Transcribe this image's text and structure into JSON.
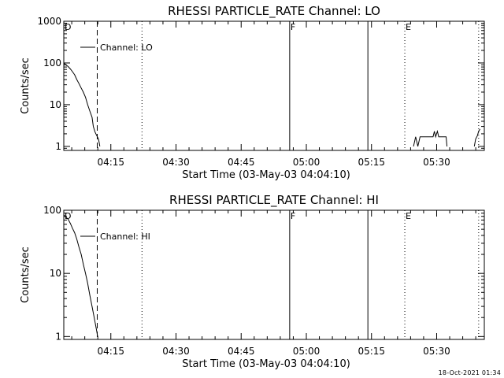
{
  "footer": {
    "timestamp": "18-Oct-2021 01:34"
  },
  "chart_data": [
    {
      "type": "line",
      "title": "RHESSI PARTICLE_RATE Channel: LO",
      "xlabel": "Start Time (03-May-03 04:04:10)",
      "ylabel": "Counts/sec",
      "x_unit": "minutes since 04:04:10",
      "xlim": [
        0,
        96.8
      ],
      "xtick_values": [
        10.83,
        25.83,
        40.83,
        55.83,
        70.83,
        85.83
      ],
      "xtick_labels": [
        "04:15",
        "04:30",
        "04:45",
        "05:00",
        "05:15",
        "05:30"
      ],
      "yscale": "log",
      "ylim": [
        0.8,
        1000
      ],
      "ytick_values": [
        1,
        10,
        100,
        1000
      ],
      "ytick_labels": [
        "1",
        "10",
        "100",
        "1000"
      ],
      "legend": {
        "label": "Channel: LO",
        "placement": "top-left"
      },
      "markers": [
        {
          "x": 0.0,
          "label": "D",
          "style": "solid"
        },
        {
          "x": 7.7,
          "label": "",
          "style": "dashed"
        },
        {
          "x": 18.0,
          "label": "",
          "style": "dotted"
        },
        {
          "x": 52.0,
          "label": "F",
          "style": "solid"
        },
        {
          "x": 70.0,
          "label": "",
          "style": "solid"
        },
        {
          "x": 78.5,
          "label": "E",
          "style": "dotted"
        },
        {
          "x": 95.5,
          "label": "",
          "style": "dotted"
        }
      ],
      "series": [
        {
          "name": "Channel: LO",
          "segments": [
            [
              [
                0.0,
                100
              ],
              [
                0.5,
                90
              ],
              [
                1.0,
                82
              ],
              [
                1.5,
                72
              ],
              [
                2.0,
                62
              ],
              [
                2.5,
                52
              ],
              [
                3.0,
                40
              ],
              [
                3.5,
                32
              ],
              [
                4.0,
                25
              ],
              [
                4.5,
                20
              ],
              [
                5.0,
                15
              ],
              [
                5.5,
                10
              ],
              [
                6.0,
                7
              ],
              [
                6.5,
                5
              ],
              [
                6.8,
                3
              ],
              [
                7.2,
                2.2
              ],
              [
                7.6,
                1.8
              ],
              [
                8.0,
                1.5
              ],
              [
                8.3,
                1
              ]
            ],
            [
              [
                80.5,
                1
              ],
              [
                81.0,
                1.7
              ],
              [
                81.5,
                1
              ],
              [
                82.0,
                1.7
              ],
              [
                85.0,
                1.7
              ],
              [
                85.3,
                2.3
              ],
              [
                85.6,
                1.7
              ],
              [
                86.0,
                2.3
              ],
              [
                86.3,
                1.7
              ],
              [
                88.0,
                1.7
              ],
              [
                88.2,
                1
              ]
            ],
            [
              [
                94.5,
                1
              ],
              [
                94.8,
                1.5
              ],
              [
                95.2,
                1.8
              ],
              [
                95.5,
                2.3
              ],
              [
                95.8,
                2.6
              ]
            ]
          ]
        }
      ]
    },
    {
      "type": "line",
      "title": "RHESSI PARTICLE_RATE Channel: HI",
      "xlabel": "Start Time (03-May-03 04:04:10)",
      "ylabel": "Counts/sec",
      "x_unit": "minutes since 04:04:10",
      "xlim": [
        0,
        96.8
      ],
      "xtick_values": [
        10.83,
        25.83,
        40.83,
        55.83,
        70.83,
        85.83
      ],
      "xtick_labels": [
        "04:15",
        "04:30",
        "04:45",
        "05:00",
        "05:15",
        "05:30"
      ],
      "yscale": "log",
      "ylim": [
        0.9,
        100
      ],
      "ytick_values": [
        1,
        10,
        100
      ],
      "ytick_labels": [
        "1",
        "10",
        "100"
      ],
      "legend": {
        "label": "Channel: HI",
        "placement": "top-left"
      },
      "markers": [
        {
          "x": 0.0,
          "label": "D",
          "style": "solid"
        },
        {
          "x": 7.7,
          "label": "",
          "style": "dashed"
        },
        {
          "x": 18.0,
          "label": "",
          "style": "dotted"
        },
        {
          "x": 52.0,
          "label": "F",
          "style": "solid"
        },
        {
          "x": 70.0,
          "label": "",
          "style": "solid"
        },
        {
          "x": 78.5,
          "label": "E",
          "style": "dotted"
        },
        {
          "x": 95.5,
          "label": "",
          "style": "dotted"
        }
      ],
      "series": [
        {
          "name": "Channel: HI",
          "segments": [
            [
              [
                0.0,
                85
              ],
              [
                0.5,
                78
              ],
              [
                1.0,
                72
              ],
              [
                1.5,
                62
              ],
              [
                2.0,
                52
              ],
              [
                2.5,
                44
              ],
              [
                3.0,
                35
              ],
              [
                3.5,
                26
              ],
              [
                4.0,
                20
              ],
              [
                4.5,
                14
              ],
              [
                5.0,
                10
              ],
              [
                5.5,
                7
              ],
              [
                6.0,
                4.5
              ],
              [
                6.5,
                3
              ],
              [
                7.0,
                2
              ],
              [
                7.5,
                1.3
              ],
              [
                7.8,
                1
              ]
            ]
          ]
        }
      ]
    }
  ]
}
